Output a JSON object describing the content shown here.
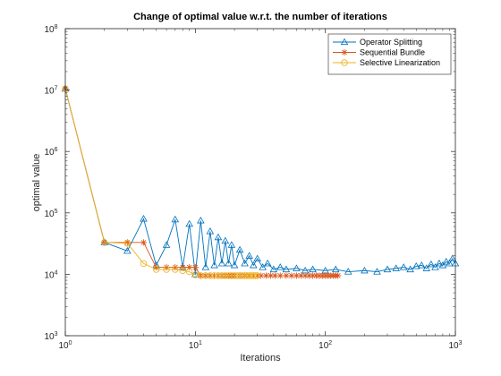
{
  "chart_data": {
    "type": "line",
    "title": "Change of optimal value w.r.t. the number of iterations",
    "xlabel": "Iterations",
    "ylabel": "optimal value",
    "xscale": "log",
    "yscale": "log",
    "xlim": [
      1,
      1000
    ],
    "ylim": [
      1000,
      100000000
    ],
    "grid": false,
    "legend_location": "top-right",
    "x_ticks": [
      {
        "value": 1,
        "base": "10",
        "exp": "0"
      },
      {
        "value": 10,
        "base": "10",
        "exp": "1"
      },
      {
        "value": 100,
        "base": "10",
        "exp": "2"
      },
      {
        "value": 1000,
        "base": "10",
        "exp": "3"
      }
    ],
    "y_ticks": [
      {
        "value": 1000,
        "base": "10",
        "exp": "3"
      },
      {
        "value": 10000,
        "base": "10",
        "exp": "4"
      },
      {
        "value": 100000,
        "base": "10",
        "exp": "5"
      },
      {
        "value": 1000000,
        "base": "10",
        "exp": "6"
      },
      {
        "value": 10000000,
        "base": "10",
        "exp": "7"
      },
      {
        "value": 100000000,
        "base": "10",
        "exp": "8"
      }
    ],
    "series": [
      {
        "name": "Operator Splitting",
        "color": "#0072BD",
        "marker": "triangle",
        "x": [
          1,
          2,
          3,
          4,
          5,
          6,
          7,
          8,
          9,
          10,
          11,
          12,
          13,
          14,
          15,
          16,
          17,
          18,
          19,
          20,
          22,
          24,
          26,
          28,
          30,
          33,
          36,
          40,
          45,
          50,
          60,
          70,
          80,
          100,
          120,
          150,
          200,
          250,
          300,
          350,
          400,
          450,
          500,
          550,
          600,
          650,
          700,
          750,
          800,
          850,
          900,
          950,
          1000
        ],
        "y": [
          10500000,
          33000,
          24000,
          80000,
          14000,
          30000,
          78000,
          13000,
          66000,
          10000,
          75000,
          13000,
          50000,
          14000,
          40000,
          15000,
          35000,
          15000,
          30000,
          14000,
          25000,
          15000,
          20000,
          14000,
          18000,
          13000,
          15000,
          12000,
          13000,
          12000,
          12500,
          11500,
          12000,
          11500,
          12000,
          11000,
          11500,
          11000,
          12000,
          12500,
          13000,
          12000,
          13500,
          14000,
          12500,
          14500,
          13000,
          15000,
          14000,
          16000,
          15000,
          18000,
          15000
        ]
      },
      {
        "name": "Sequential Bundle",
        "color": "#D95319",
        "marker": "star",
        "x": [
          1,
          2,
          3,
          4,
          5,
          6,
          7,
          8,
          9,
          10,
          11,
          12,
          13,
          14,
          15,
          16,
          17,
          18,
          19,
          20,
          22,
          24,
          26,
          28,
          30,
          32,
          35,
          38,
          41,
          45,
          50,
          55,
          60,
          65,
          70,
          75,
          80,
          85,
          90,
          95,
          100,
          105,
          110,
          115,
          120,
          125
        ],
        "y": [
          10500000,
          33000,
          33000,
          33000,
          13000,
          13000,
          13000,
          13000,
          13000,
          13000,
          9500,
          9500,
          9500,
          9500,
          9500,
          9500,
          9500,
          9500,
          9500,
          9500,
          9500,
          9500,
          9500,
          9500,
          9500,
          9500,
          9500,
          9500,
          9500,
          9500,
          9500,
          9500,
          9500,
          9500,
          9500,
          9500,
          9500,
          9500,
          9500,
          9500,
          9500,
          9500,
          9500,
          9500,
          9500,
          9500
        ]
      },
      {
        "name": "Selective Linearization",
        "color": "#EDB120",
        "marker": "circle",
        "x": [
          1,
          2,
          3,
          4,
          5,
          6,
          7,
          8,
          9,
          10,
          11,
          12,
          13,
          14,
          15,
          16,
          17,
          18,
          19,
          20,
          21,
          22,
          23,
          24,
          25,
          26,
          27,
          28,
          29,
          30
        ],
        "y": [
          10500000,
          33000,
          32000,
          15000,
          12000,
          12000,
          12000,
          11500,
          11000,
          9800,
          9500,
          9500,
          9500,
          9500,
          9500,
          9500,
          9500,
          9500,
          9500,
          9500,
          9500,
          9500,
          9500,
          9500,
          9500,
          9500,
          9500,
          9500,
          9500,
          9500
        ]
      }
    ]
  }
}
